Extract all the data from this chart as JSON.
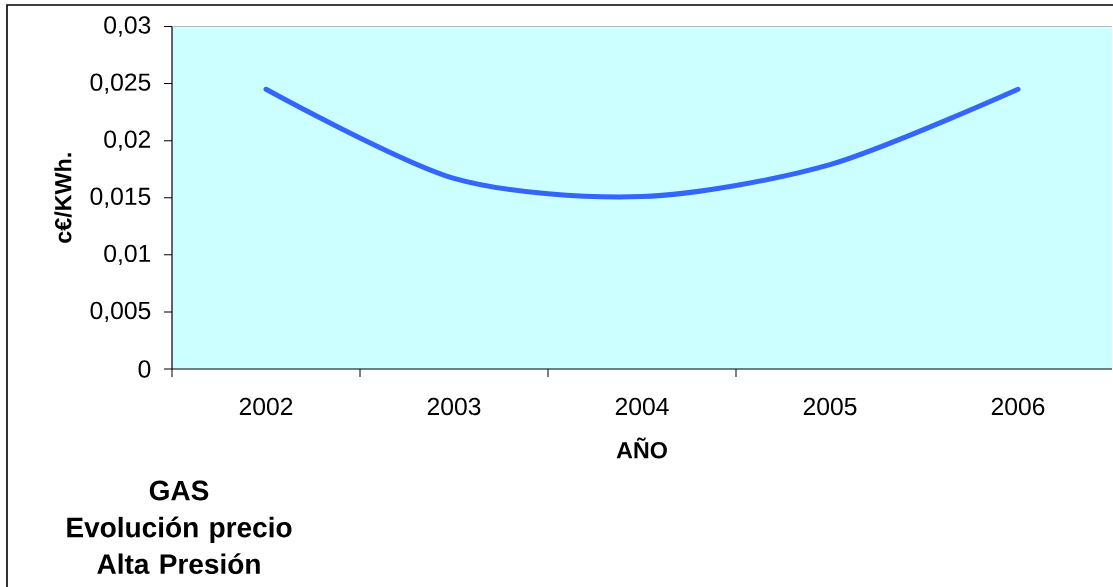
{
  "chart_data": {
    "type": "line",
    "title": "GAS",
    "subtitle": "Evolución precio Alta Presión",
    "xlabel": "AÑO",
    "ylabel": "c€/KWh.",
    "categories": [
      "2002",
      "2003",
      "2004",
      "2005",
      "2006"
    ],
    "values": [
      0.0245,
      0.0167,
      0.0151,
      0.0179,
      0.0245
    ],
    "color": "#3366ff",
    "ylim": [
      0,
      0.03
    ],
    "yticks": [
      0,
      {
        "value": 0.005,
        "label": "0,005"
      },
      {
        "value": 0.01,
        "label": "0,01"
      },
      {
        "value": 0.015,
        "label": "0,015"
      },
      {
        "value": 0.02,
        "label": "0,02"
      },
      {
        "value": 0.025,
        "label": "0,025"
      },
      {
        "value": 0.03,
        "label": "0,03"
      }
    ]
  }
}
